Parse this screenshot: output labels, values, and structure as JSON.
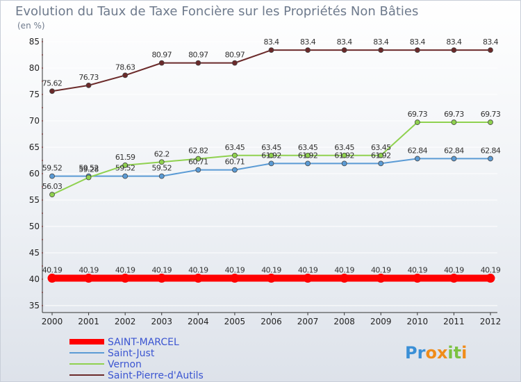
{
  "chart_data": {
    "type": "line",
    "title": "Evolution du Taux de Taxe Foncière sur les Propriétés Non Bâties",
    "subtitle": "(en %)",
    "xlabel": "",
    "ylabel": "",
    "x": [
      "2000",
      "2001",
      "2002",
      "2003",
      "2004",
      "2005",
      "2006",
      "2007",
      "2008",
      "2009",
      "2010",
      "2011",
      "2012"
    ],
    "ylim": [
      35,
      85
    ],
    "yticks": [
      "35",
      "40",
      "45",
      "50",
      "55",
      "60",
      "65",
      "70",
      "75",
      "80",
      "85"
    ],
    "grid": true,
    "legend_position": "bottom-left",
    "series": [
      {
        "name": "SAINT-MARCEL",
        "color": "#ff0000",
        "values": [
          40.19,
          40.19,
          40.19,
          40.19,
          40.19,
          40.19,
          40.19,
          40.19,
          40.19,
          40.19,
          40.19,
          40.19,
          40.19
        ],
        "labels": [
          "40.19",
          "40.19",
          "40.19",
          "40.19",
          "40.19",
          "40.19",
          "40.19",
          "40.19",
          "40.19",
          "40.19",
          "40.19",
          "40.19",
          "40.19"
        ]
      },
      {
        "name": "Saint-Just",
        "color": "#5b9bd5",
        "values": [
          59.52,
          59.52,
          59.52,
          59.52,
          60.71,
          60.71,
          61.92,
          61.92,
          61.92,
          61.92,
          62.84,
          62.84,
          62.84
        ],
        "labels": [
          "59.52",
          "59.52",
          "59.52",
          "59.52",
          "60.71",
          "60.71",
          "61.92",
          "61.92",
          "61.92",
          "61.92",
          "62.84",
          "62.84",
          "62.84"
        ]
      },
      {
        "name": "Vernon",
        "color": "#8fd14f",
        "values": [
          56.03,
          59.28,
          61.59,
          62.2,
          62.82,
          63.45,
          63.45,
          63.45,
          63.45,
          63.45,
          69.73,
          69.73,
          69.73
        ],
        "labels": [
          "56.03",
          "59.28",
          "61.59",
          "62.2",
          "62.82",
          "63.45",
          "63.45",
          "63.45",
          "63.45",
          "63.45",
          "69.73",
          "69.73",
          "69.73"
        ]
      },
      {
        "name": "Saint-Pierre-d'Autils",
        "color": "#6b2a2a",
        "values": [
          75.62,
          76.73,
          78.63,
          80.97,
          80.97,
          80.97,
          83.4,
          83.4,
          83.4,
          83.4,
          83.4,
          83.4,
          83.4
        ],
        "labels": [
          "75.62",
          "76.73",
          "78.63",
          "80.97",
          "80.97",
          "80.97",
          "83.4",
          "83.4",
          "83.4",
          "83.4",
          "83.4",
          "83.4",
          "83.4"
        ]
      }
    ]
  },
  "logo": {
    "text": "Proxiti",
    "letters": [
      "P",
      "r",
      "o",
      "x",
      "i",
      "t",
      "i"
    ],
    "colors": [
      "#3a8fd6",
      "#3a8fd6",
      "#f08c1a",
      "#f08c1a",
      "#7cc242",
      "#7cc242",
      "#f08c1a"
    ]
  }
}
